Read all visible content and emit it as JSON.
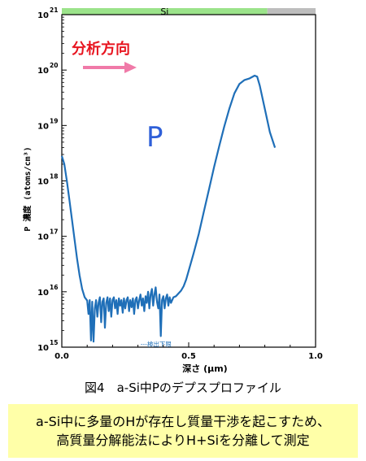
{
  "chart_data": {
    "type": "line",
    "title": "",
    "xlabel": "深さ (μm)",
    "ylabel": "P 濃度 (atoms/cm³)",
    "xlim": [
      0,
      1.0
    ],
    "ylim_log10": [
      15,
      21
    ],
    "y_scale": "log",
    "x_ticks": [
      "0.0",
      "0.5",
      "1.0"
    ],
    "y_tick_exponents": [
      "21",
      "20",
      "19",
      "18",
      "17",
      "16",
      "15"
    ],
    "y_tick_base": "10",
    "series": [
      {
        "name": "P",
        "color": "#1f6fb8",
        "points": [
          [
            0.0,
            18.45
          ],
          [
            0.01,
            18.3
          ],
          [
            0.02,
            18.0
          ],
          [
            0.03,
            17.65
          ],
          [
            0.04,
            17.3
          ],
          [
            0.05,
            16.95
          ],
          [
            0.06,
            16.6
          ],
          [
            0.07,
            16.3
          ],
          [
            0.08,
            16.05
          ],
          [
            0.09,
            15.9
          ],
          [
            0.1,
            15.84
          ],
          [
            0.105,
            15.6
          ],
          [
            0.11,
            15.85
          ],
          [
            0.115,
            15.12
          ],
          [
            0.12,
            15.82
          ],
          [
            0.125,
            15.1
          ],
          [
            0.13,
            15.7
          ],
          [
            0.135,
            15.85
          ],
          [
            0.14,
            15.55
          ],
          [
            0.145,
            15.8
          ],
          [
            0.15,
            15.9
          ],
          [
            0.155,
            15.45
          ],
          [
            0.16,
            15.82
          ],
          [
            0.165,
            15.88
          ],
          [
            0.17,
            15.35
          ],
          [
            0.175,
            15.8
          ],
          [
            0.18,
            15.9
          ],
          [
            0.185,
            15.65
          ],
          [
            0.19,
            15.88
          ],
          [
            0.195,
            15.55
          ],
          [
            0.2,
            15.85
          ],
          [
            0.205,
            15.9
          ],
          [
            0.21,
            15.7
          ],
          [
            0.215,
            15.85
          ],
          [
            0.22,
            15.6
          ],
          [
            0.225,
            15.88
          ],
          [
            0.23,
            15.75
          ],
          [
            0.235,
            15.85
          ],
          [
            0.24,
            15.62
          ],
          [
            0.245,
            15.88
          ],
          [
            0.25,
            15.7
          ],
          [
            0.255,
            15.85
          ],
          [
            0.26,
            15.9
          ],
          [
            0.265,
            15.65
          ],
          [
            0.27,
            15.85
          ],
          [
            0.275,
            15.72
          ],
          [
            0.28,
            15.88
          ],
          [
            0.285,
            15.6
          ],
          [
            0.29,
            15.85
          ],
          [
            0.295,
            15.9
          ],
          [
            0.3,
            15.7
          ],
          [
            0.305,
            15.85
          ],
          [
            0.31,
            15.95
          ],
          [
            0.315,
            15.75
          ],
          [
            0.32,
            15.88
          ],
          [
            0.325,
            15.65
          ],
          [
            0.33,
            15.92
          ],
          [
            0.335,
            15.8
          ],
          [
            0.34,
            16.0
          ],
          [
            0.345,
            15.7
          ],
          [
            0.35,
            15.95
          ],
          [
            0.355,
            16.05
          ],
          [
            0.36,
            15.75
          ],
          [
            0.365,
            15.95
          ],
          [
            0.37,
            16.08
          ],
          [
            0.375,
            15.82
          ],
          [
            0.38,
            15.7
          ],
          [
            0.385,
            15.95
          ],
          [
            0.39,
            15.2
          ],
          [
            0.395,
            15.85
          ],
          [
            0.4,
            15.92
          ],
          [
            0.405,
            15.7
          ],
          [
            0.41,
            15.88
          ],
          [
            0.415,
            15.95
          ],
          [
            0.42,
            15.75
          ],
          [
            0.425,
            15.9
          ],
          [
            0.43,
            15.8
          ],
          [
            0.44,
            15.9
          ],
          [
            0.45,
            15.92
          ],
          [
            0.46,
            15.97
          ],
          [
            0.47,
            16.02
          ],
          [
            0.48,
            16.1
          ],
          [
            0.49,
            16.22
          ],
          [
            0.5,
            16.38
          ],
          [
            0.52,
            16.7
          ],
          [
            0.54,
            17.05
          ],
          [
            0.56,
            17.45
          ],
          [
            0.58,
            17.85
          ],
          [
            0.6,
            18.25
          ],
          [
            0.62,
            18.62
          ],
          [
            0.64,
            18.98
          ],
          [
            0.66,
            19.3
          ],
          [
            0.68,
            19.58
          ],
          [
            0.7,
            19.75
          ],
          [
            0.72,
            19.82
          ],
          [
            0.74,
            19.85
          ],
          [
            0.76,
            19.9
          ],
          [
            0.77,
            19.88
          ],
          [
            0.78,
            19.72
          ],
          [
            0.8,
            19.3
          ],
          [
            0.82,
            18.88
          ],
          [
            0.84,
            18.6
          ]
        ]
      }
    ],
    "detection_limit_log10": 15.06,
    "detection_limit_label": "---検出下限",
    "annotations": {
      "direction_label": "分析方向",
      "series_big_label": "P",
      "layer_bar_label": "Si",
      "layer_green_end": 0.81,
      "layer_gray_start": 0.81,
      "layer_gray_end": 1.0
    },
    "grid": false,
    "legend": "none"
  },
  "caption": "図4　a-Si中Pのデプスプロファイル",
  "note": {
    "line1": "a-Si中に多量のHが存在し質量干渉を起こすため、",
    "line2": "高質量分解能法によりH+Siを分離して測定"
  },
  "colors": {
    "series": "#1f6fb8",
    "direction_text": "#e8141f",
    "direction_arrow": "#f07aa8",
    "big_label": "#2e5fd8",
    "layer_green": "#9be38a",
    "layer_gray": "#bdbdbd",
    "note_bg": "#ffffa8"
  }
}
